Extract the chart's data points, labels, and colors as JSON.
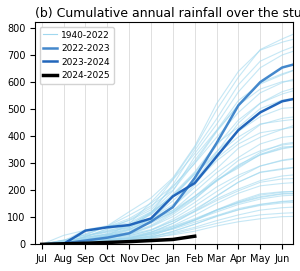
{
  "title": "(b) Cumulative annual rainfall over the study region",
  "title_fontsize": 9,
  "months": [
    "Jul",
    "Aug",
    "Sep",
    "Oct",
    "Nov",
    "Dec",
    "Jan",
    "Feb",
    "Mar",
    "Apr",
    "May",
    "Jun"
  ],
  "ylim": [
    0,
    820
  ],
  "yticks": [
    0,
    100,
    200,
    300,
    400,
    500,
    600,
    700,
    800
  ],
  "historical_color": "#a0d8ef",
  "year2022_color": "#4488cc",
  "year2023_color": "#2266bb",
  "year2024_color": "#000000",
  "historical_alpha": 0.6,
  "historical_lw": 0.8,
  "highlight_lw": 1.8,
  "current_lw": 2.5,
  "legend_labels": [
    "1940-2022",
    "2022-2023",
    "2023-2024",
    "2024-2025"
  ],
  "n_historical": 40,
  "seed": 42
}
